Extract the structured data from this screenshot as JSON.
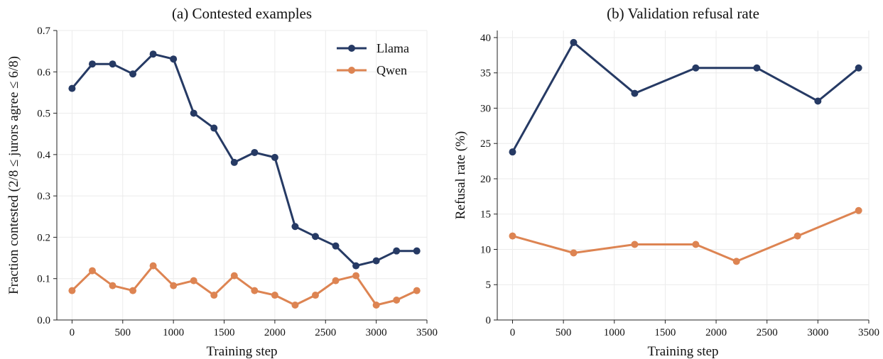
{
  "chart_data": [
    {
      "type": "line",
      "title": "(a) Contested examples",
      "xlabel": "Training step",
      "ylabel": "Fraction contested  (2/8 ≤ jurors agree ≤ 6/8)",
      "xlim": [
        -150,
        3500
      ],
      "ylim": [
        0,
        0.7
      ],
      "xticks": [
        0,
        500,
        1000,
        1500,
        2000,
        2500,
        3000,
        3500
      ],
      "yticks": [
        0.0,
        0.1,
        0.2,
        0.3,
        0.4,
        0.5,
        0.6,
        0.7
      ],
      "ytick_labels": [
        "0.0",
        "0.1",
        "0.2",
        "0.3",
        "0.4",
        "0.5",
        "0.6",
        "0.7"
      ],
      "grid": true,
      "legend": "top-right",
      "x": [
        0,
        200,
        400,
        600,
        800,
        1000,
        1200,
        1400,
        1600,
        1800,
        2000,
        2200,
        2400,
        2600,
        2800,
        3000,
        3200,
        3400
      ],
      "series": [
        {
          "name": "Llama",
          "color": "#263a64",
          "values": [
            0.56,
            0.619,
            0.619,
            0.595,
            0.643,
            0.631,
            0.5,
            0.464,
            0.381,
            0.405,
            0.393,
            0.226,
            0.202,
            0.179,
            0.131,
            0.143,
            0.167,
            0.167
          ]
        },
        {
          "name": "Qwen",
          "color": "#dd8452",
          "values": [
            0.071,
            0.119,
            0.083,
            0.071,
            0.131,
            0.083,
            0.095,
            0.06,
            0.107,
            0.071,
            0.06,
            0.036,
            0.06,
            0.095,
            0.107,
            0.036,
            0.048,
            0.071
          ]
        }
      ]
    },
    {
      "type": "line",
      "title": "(b) Validation refusal rate",
      "xlabel": "Training step",
      "ylabel": "Refusal rate (%)",
      "xlim": [
        -150,
        3500
      ],
      "ylim": [
        0,
        41
      ],
      "xticks": [
        0,
        500,
        1000,
        1500,
        2000,
        2500,
        3000,
        3500
      ],
      "yticks": [
        0,
        5,
        10,
        15,
        20,
        25,
        30,
        35,
        40
      ],
      "ytick_labels": [
        "0",
        "5",
        "10",
        "15",
        "20",
        "25",
        "30",
        "35",
        "40"
      ],
      "grid": true,
      "x": [
        0,
        600,
        1200,
        1800,
        2400,
        3000,
        3400
      ],
      "series": [
        {
          "color": "#263a64",
          "x": [
            0,
            600,
            1200,
            1800,
            2400,
            3000,
            3400
          ],
          "values": [
            23.8,
            39.3,
            32.1,
            35.7,
            35.7,
            31.0,
            35.7
          ]
        },
        {
          "color": "#dd8452",
          "x": [
            0,
            600,
            1200,
            1800,
            2200,
            2800,
            3400
          ],
          "values": [
            11.9,
            9.5,
            10.7,
            10.7,
            8.3,
            11.9,
            15.5
          ]
        }
      ]
    }
  ]
}
